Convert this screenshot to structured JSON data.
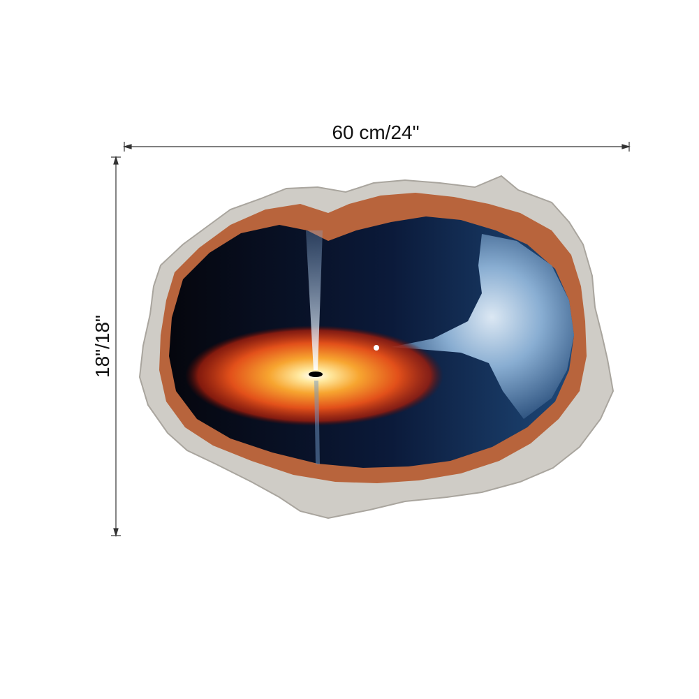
{
  "dimensions": {
    "width_label": "60 cm/24\"",
    "height_label": "18\"/18\""
  }
}
